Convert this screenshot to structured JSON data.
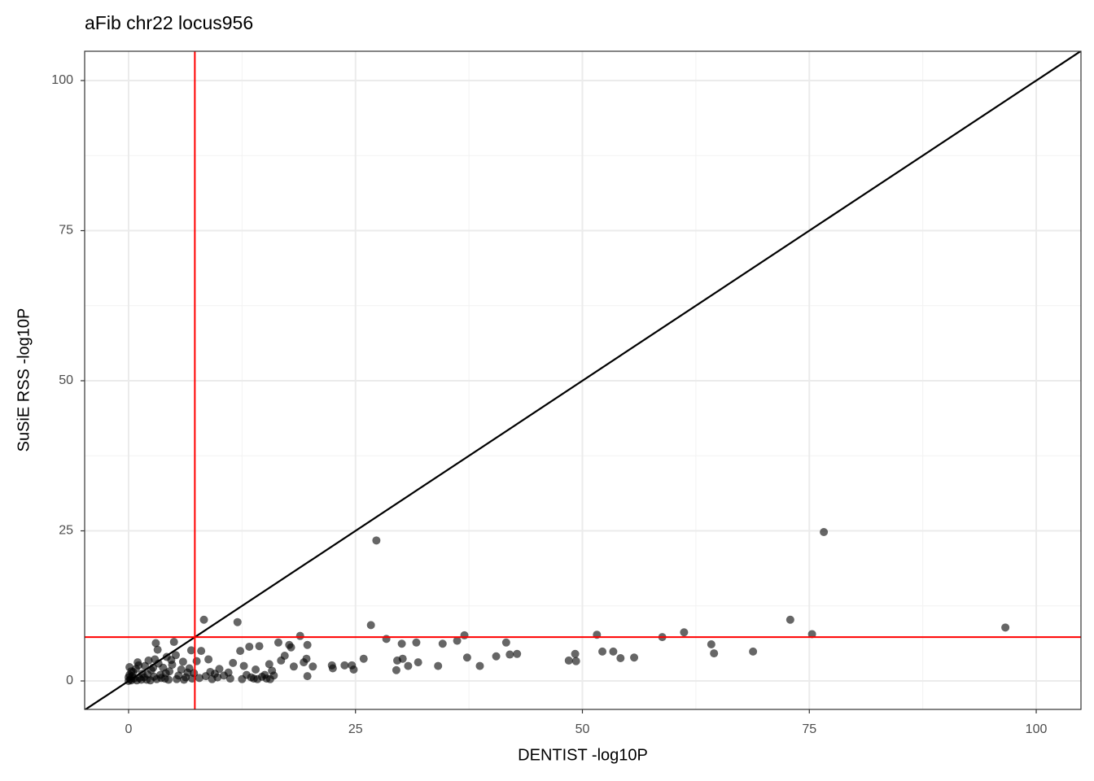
{
  "chart_data": {
    "type": "scatter",
    "title": "aFib chr22 locus956",
    "x_label": "DENTIST -log10P",
    "y_label": "SuSiE RSS -log10P",
    "xlim": [
      -4.84,
      104.93
    ],
    "ylim": [
      -4.74,
      104.88
    ],
    "xticks": [
      0,
      25,
      50,
      75,
      100
    ],
    "yticks": [
      0,
      25,
      50,
      75,
      100
    ],
    "x_minor_ticks": [
      12.5,
      37.5,
      62.5,
      87.5
    ],
    "y_minor_ticks": [
      12.5,
      37.5,
      62.5,
      87.5
    ],
    "grid": true,
    "reference_lines": {
      "vertical": {
        "value": 7.3,
        "color": "#ff0000"
      },
      "horizontal": {
        "value": 7.3,
        "color": "#ff0000"
      },
      "diagonal": {
        "slope": 1,
        "intercept": 0,
        "color": "#000000"
      }
    },
    "series": [
      {
        "color": "#000000",
        "opacity": 0.6,
        "x": [
          0,
          0.2,
          0.4,
          0.5,
          0.8,
          1.0,
          1.2,
          1.5,
          1.8,
          2.0,
          2.2,
          2.5,
          2.8,
          3.0,
          3.2,
          3.3,
          3.5,
          3.8,
          4.0,
          4.2,
          4.5,
          4.8,
          5.0,
          5.2,
          5.5,
          5.8,
          6.0,
          6.3,
          6.7,
          6.9,
          7.2,
          7.5,
          8.0,
          8.3,
          8.5,
          8.8,
          9.0,
          9.5,
          10.0,
          10.5,
          11.0,
          11.5,
          12.0,
          12.3,
          12.7,
          13.0,
          13.3,
          13.5,
          14.0,
          14.4,
          14.7,
          15.0,
          15.5,
          15.8,
          16.0,
          16.5,
          16.8,
          17.2,
          17.7,
          17.9,
          18.2,
          18.9,
          19.3,
          19.6,
          19.7,
          19.7,
          20.3,
          0.1,
          0.3,
          0.6,
          0.9,
          1.1,
          1.4,
          1.7,
          2.1,
          2.4,
          2.7,
          2.9,
          3.1,
          3.6,
          4.1,
          4.4,
          4.7,
          5.3,
          6.1,
          6.5,
          7.0,
          7.8,
          9.2,
          9.8,
          11.2,
          12.5,
          13.8,
          14.2,
          15.2,
          15.6,
          0.0,
          0.1,
          0.3,
          26.7,
          27.3,
          76.6,
          96.6,
          72.9,
          75.3,
          61.2,
          58.8,
          51.6,
          64.2,
          64.5,
          68.8,
          52.2,
          53.4,
          54.2,
          55.7,
          49.2,
          48.5,
          49.3,
          41.6,
          42.0,
          42.8,
          40.5,
          37.0,
          36.2,
          34.6,
          37.3,
          38.7,
          34.1,
          28.4,
          30.1,
          31.7,
          29.6,
          30.2,
          31.9,
          29.5,
          30.8,
          25.9,
          24.6,
          23.8,
          24.8,
          22.5,
          22.4
        ],
        "y": [
          0,
          0.3,
          0.8,
          1.5,
          2.0,
          3.1,
          0.5,
          1.2,
          2.5,
          0.2,
          3.4,
          1.8,
          0.7,
          6.3,
          5.2,
          2.9,
          1.0,
          2.2,
          0.4,
          4.0,
          1.6,
          2.7,
          6.5,
          4.3,
          0.9,
          1.9,
          3.2,
          0.6,
          2.1,
          5.1,
          1.3,
          3.3,
          5.0,
          10.2,
          0.8,
          3.6,
          1.5,
          1.2,
          2.0,
          0.9,
          1.4,
          3.0,
          9.8,
          5.0,
          2.5,
          1.0,
          5.7,
          0.6,
          1.9,
          5.8,
          0.7,
          1.0,
          2.8,
          1.7,
          0.9,
          6.4,
          3.4,
          4.2,
          6.0,
          5.6,
          2.4,
          7.5,
          3.1,
          3.7,
          6.0,
          0.8,
          2.4,
          1,
          0.1,
          0.4,
          0.1,
          2.6,
          0.2,
          0.6,
          1.1,
          0.1,
          2.2,
          3.6,
          0.3,
          0.5,
          1.3,
          0.2,
          3.5,
          0.3,
          0.2,
          1.4,
          0.4,
          0.5,
          0.3,
          0.6,
          0.4,
          0.3,
          0.4,
          0.3,
          0.4,
          0.3,
          0.6,
          2.3,
          1.6,
          9.3,
          23.4,
          24.8,
          8.9,
          10.2,
          7.8,
          8.1,
          7.3,
          7.7,
          6.1,
          4.6,
          4.9,
          4.9,
          4.9,
          3.8,
          3.9,
          4.5,
          3.4,
          3.3,
          6.4,
          4.4,
          4.5,
          4.1,
          7.6,
          6.7,
          6.2,
          3.9,
          2.5,
          2.5,
          7.0,
          6.2,
          6.4,
          3.4,
          3.7,
          3.1,
          1.8,
          2.5,
          3.7,
          2.6,
          2.6,
          1.9,
          2.1,
          2.6
        ]
      }
    ]
  }
}
